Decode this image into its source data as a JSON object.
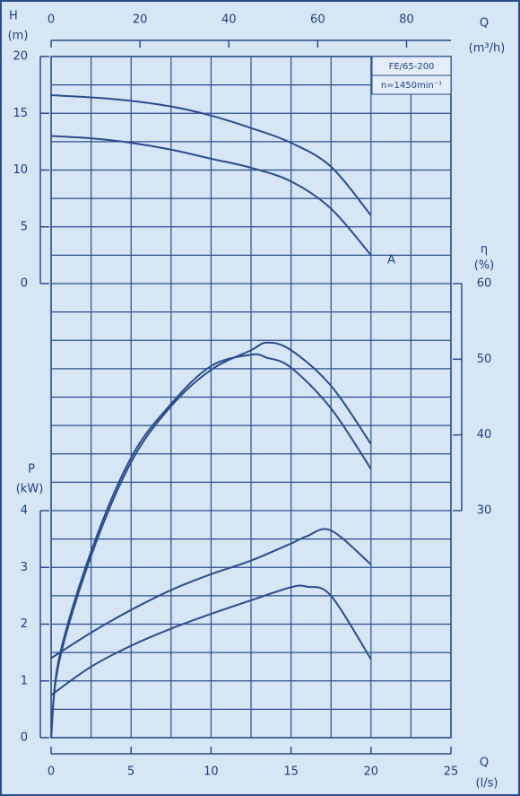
{
  "chart_data": [
    {
      "type": "line",
      "ylabel": "H",
      "yunit": "(m)",
      "xlabel": "Q",
      "xunit": "(l/s)",
      "xlim": [
        0,
        25
      ],
      "xticks": [
        0,
        5,
        10,
        15,
        20,
        25
      ],
      "xgrid": [
        0,
        2.5,
        5,
        7.5,
        10,
        12.5,
        15,
        17.5,
        20,
        22.5,
        25
      ],
      "x2label": "Q",
      "x2unit": "(m³/h)",
      "x2lim": [
        0,
        90
      ],
      "x2ticks": [
        0,
        20,
        40,
        60,
        80
      ],
      "ylim": [
        -40,
        20
      ],
      "yticks": [
        0,
        5,
        10,
        15,
        20
      ],
      "ygrid": [
        -40,
        -37.5,
        -35,
        -32.5,
        -30,
        -27.5,
        -25,
        -22.5,
        -20,
        -17.5,
        -15,
        -12.5,
        -10,
        -7.5,
        -5,
        -2.5,
        0,
        2.5,
        5,
        7.5,
        10,
        12.5,
        15,
        17.5,
        20
      ],
      "annotations": [
        "FE/65-200",
        "n=1450min⁻¹"
      ],
      "curve_label": "A",
      "x": [
        0,
        2.5,
        5,
        7.5,
        10,
        12.5,
        15,
        17.5,
        20
      ],
      "series": [
        {
          "color": "#2b4d8c",
          "values": [
            16.6,
            16.4,
            16.1,
            15.6,
            14.8,
            13.7,
            12.4,
            10.3,
            6.0
          ]
        },
        {
          "color": "#2b4d8c",
          "values": [
            13.0,
            12.8,
            12.4,
            11.8,
            11.0,
            10.2,
            9.0,
            6.6,
            2.5
          ]
        }
      ]
    },
    {
      "type": "line",
      "ylabel": "η",
      "yunit": "(%)",
      "xlim": [
        0,
        25
      ],
      "ylim": [
        0,
        90
      ],
      "yticks": [
        30,
        40,
        50,
        60
      ],
      "x": [
        0,
        0.5,
        2.5,
        5,
        7.5,
        10,
        12.5,
        13.5,
        15,
        17.5,
        20
      ],
      "series": [
        {
          "color": "#2b4d8c",
          "values": [
            0,
            10,
            24,
            36.4,
            43.8,
            48.6,
            51.2,
            52.2,
            51.2,
            46.5,
            38.8
          ]
        },
        {
          "color": "#2b4d8c",
          "values": [
            0,
            10.5,
            24.6,
            37,
            44.1,
            49.1,
            50.6,
            50.2,
            48.9,
            43.5,
            35.5
          ]
        }
      ]
    },
    {
      "type": "line",
      "ylabel": "P",
      "yunit": "(kW)",
      "xlim": [
        0,
        25
      ],
      "ylim": [
        0,
        12
      ],
      "yticks": [
        0,
        1,
        2,
        3,
        4
      ],
      "x": [
        0,
        2.5,
        5,
        7.5,
        10,
        12.5,
        15,
        16,
        17.5,
        20
      ],
      "series": [
        {
          "color": "#2b4d8c",
          "values": [
            1.4,
            1.85,
            2.25,
            2.6,
            2.88,
            3.12,
            3.42,
            3.55,
            3.65,
            3.05
          ]
        },
        {
          "color": "#2b4d8c",
          "values": [
            0.75,
            1.25,
            1.62,
            1.92,
            2.18,
            2.42,
            2.65,
            2.66,
            2.5,
            1.38
          ]
        }
      ]
    }
  ]
}
